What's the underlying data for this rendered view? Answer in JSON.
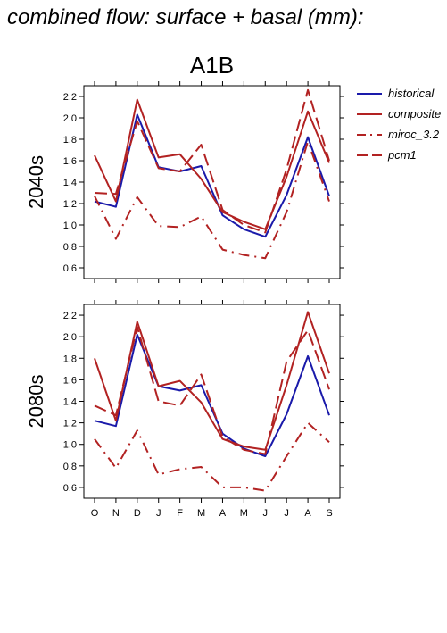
{
  "title": "combined flow: surface + basal (mm):",
  "chart_data": [
    {
      "type": "line",
      "title": "A1B",
      "ylabel": "2040s",
      "ylim": [
        0.5,
        2.3
      ],
      "yticks": [
        0.6,
        0.8,
        1.0,
        1.2,
        1.4,
        1.6,
        1.8,
        2.0,
        2.2
      ],
      "categories": [
        "O",
        "N",
        "D",
        "J",
        "F",
        "M",
        "A",
        "M",
        "J",
        "J",
        "A",
        "S"
      ],
      "grid": false,
      "legend": "right",
      "series": [
        {
          "name": "historical",
          "color": "#1a1aaa",
          "style": "solid",
          "values": [
            1.22,
            1.17,
            2.03,
            1.54,
            1.5,
            1.55,
            1.09,
            0.96,
            0.89,
            1.28,
            1.82,
            1.27
          ]
        },
        {
          "name": "composite",
          "color": "#b22222",
          "style": "solid",
          "values": [
            1.65,
            1.22,
            2.17,
            1.63,
            1.66,
            1.43,
            1.12,
            1.03,
            0.96,
            1.45,
            2.06,
            1.58
          ]
        },
        {
          "name": "miroc_3.2",
          "color": "#b22222",
          "style": "dashdot",
          "values": [
            1.27,
            0.87,
            1.26,
            0.99,
            0.98,
            1.08,
            0.77,
            0.72,
            0.69,
            1.12,
            1.78,
            1.22
          ]
        },
        {
          "name": "pcm1",
          "color": "#b22222",
          "style": "dashed",
          "values": [
            1.3,
            1.29,
            1.97,
            1.53,
            1.5,
            1.75,
            1.14,
            1.0,
            0.93,
            1.52,
            2.26,
            1.6
          ]
        }
      ]
    },
    {
      "type": "line",
      "title": "",
      "ylabel": "2080s",
      "ylim": [
        0.5,
        2.3
      ],
      "yticks": [
        0.6,
        0.8,
        1.0,
        1.2,
        1.4,
        1.6,
        1.8,
        2.0,
        2.2
      ],
      "categories": [
        "O",
        "N",
        "D",
        "J",
        "F",
        "M",
        "A",
        "M",
        "J",
        "J",
        "A",
        "S"
      ],
      "grid": false,
      "series": [
        {
          "name": "historical",
          "color": "#1a1aaa",
          "style": "solid",
          "values": [
            1.22,
            1.17,
            2.02,
            1.54,
            1.5,
            1.55,
            1.1,
            0.96,
            0.89,
            1.28,
            1.82,
            1.27
          ]
        },
        {
          "name": "composite",
          "color": "#b22222",
          "style": "solid",
          "values": [
            1.8,
            1.22,
            2.14,
            1.54,
            1.59,
            1.39,
            1.05,
            0.98,
            0.95,
            1.55,
            2.23,
            1.66
          ]
        },
        {
          "name": "miroc_3.2",
          "color": "#b22222",
          "style": "dashdot",
          "values": [
            1.05,
            0.78,
            1.13,
            0.72,
            0.77,
            0.79,
            0.6,
            0.6,
            0.57,
            0.89,
            1.2,
            1.02
          ]
        },
        {
          "name": "pcm1",
          "color": "#b22222",
          "style": "dashed",
          "values": [
            1.36,
            1.27,
            2.09,
            1.4,
            1.36,
            1.65,
            1.07,
            0.95,
            0.91,
            1.77,
            2.06,
            1.51
          ]
        }
      ]
    }
  ]
}
